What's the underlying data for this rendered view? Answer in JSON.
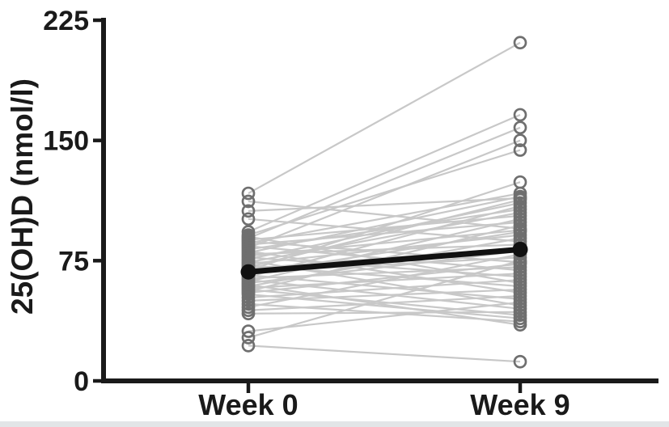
{
  "figure": {
    "description": "Paired individual-subject plot of serum 25(OH)D before and after intervention"
  },
  "chart_data": {
    "type": "line",
    "subtype": "paired-spaghetti",
    "title": "",
    "xlabel": "",
    "ylabel": "25(OH)D (nmol/l)",
    "categories": [
      "Week 0",
      "Week 9"
    ],
    "ylim": [
      0,
      225
    ],
    "yticks": [
      0,
      75,
      150,
      225
    ],
    "grid": false,
    "legend": "none",
    "series_note": "each pair = one subject [week0_value, week9_value]",
    "pairs": [
      [
        117,
        211
      ],
      [
        112,
        95
      ],
      [
        106,
        114
      ],
      [
        101,
        87
      ],
      [
        93,
        166
      ],
      [
        91,
        144
      ],
      [
        90,
        61
      ],
      [
        89,
        158
      ],
      [
        88,
        103
      ],
      [
        87,
        74
      ],
      [
        86,
        117
      ],
      [
        85,
        99
      ],
      [
        84,
        69
      ],
      [
        83,
        150
      ],
      [
        82,
        107
      ],
      [
        81,
        55
      ],
      [
        80,
        115
      ],
      [
        79,
        85
      ],
      [
        78,
        94
      ],
      [
        77,
        65
      ],
      [
        76,
        111
      ],
      [
        75,
        47
      ],
      [
        74,
        105
      ],
      [
        73,
        91
      ],
      [
        72,
        59
      ],
      [
        71,
        113
      ],
      [
        70,
        83
      ],
      [
        69,
        124
      ],
      [
        68,
        77
      ],
      [
        67,
        93
      ],
      [
        66,
        51
      ],
      [
        65,
        109
      ],
      [
        64,
        71
      ],
      [
        63,
        45
      ],
      [
        62,
        101
      ],
      [
        61,
        81
      ],
      [
        60,
        35
      ],
      [
        59,
        89
      ],
      [
        58,
        67
      ],
      [
        57,
        41
      ],
      [
        56,
        97
      ],
      [
        55,
        73
      ],
      [
        54,
        39
      ],
      [
        52,
        63
      ],
      [
        50,
        57
      ],
      [
        48,
        37
      ],
      [
        46,
        79
      ],
      [
        44,
        53
      ],
      [
        42,
        43
      ],
      [
        31,
        49
      ],
      [
        27,
        75
      ],
      [
        22,
        12
      ]
    ],
    "mean_series": {
      "name": "mean",
      "values": [
        68,
        82
      ]
    },
    "colors": {
      "subject_line": "#c8c8c8",
      "subject_marker_stroke": "#6f6f6f",
      "mean_line": "#111111",
      "axis": "#1a1a1a",
      "bottom_strip": "#e2e5e7"
    }
  }
}
